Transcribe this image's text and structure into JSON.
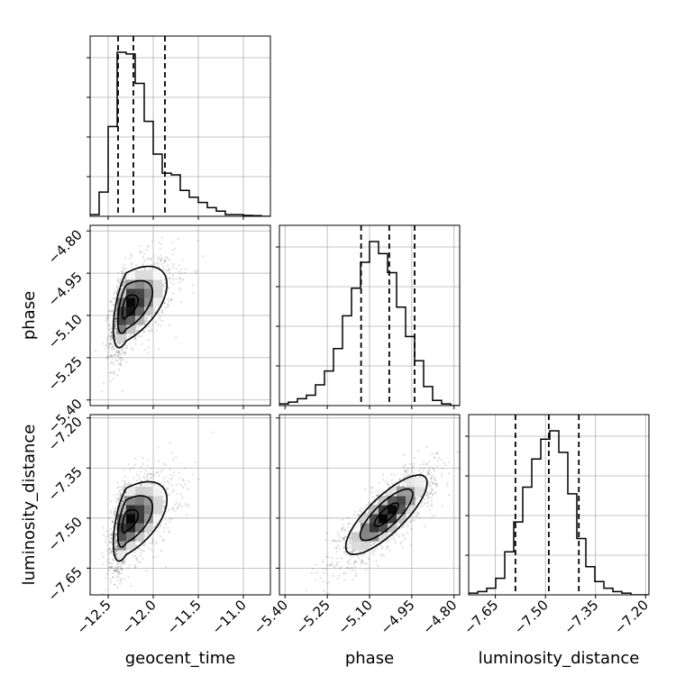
{
  "chart_data": {
    "type": "corner",
    "parameters": [
      "geocent_time",
      "phase",
      "luminosity_distance"
    ],
    "axis_labels": {
      "geocent_time": "geocent_time",
      "phase": "phase",
      "luminosity_distance": "luminosity_distance"
    },
    "ranges": {
      "geocent_time": [
        -12.7,
        -10.7
      ],
      "phase": [
        -5.42,
        -4.78
      ],
      "luminosity_distance": [
        -7.73,
        -7.19
      ]
    },
    "ticks": {
      "geocent_time": {
        "values": [
          -12.5,
          -12.0,
          -11.5,
          -11.0
        ],
        "labels": [
          "−12.5",
          "−12.0",
          "−11.5",
          "−11.0"
        ]
      },
      "phase": {
        "values": [
          -5.4,
          -5.25,
          -5.1,
          -4.95,
          -4.8
        ],
        "labels": [
          "−5.40",
          "−5.25",
          "−5.10",
          "−4.95",
          "−4.80"
        ]
      },
      "luminosity_distance": {
        "values": [
          -7.65,
          -7.5,
          -7.35,
          -7.2
        ],
        "labels": [
          "−7.65",
          "−7.50",
          "−7.35",
          "−7.20"
        ]
      }
    },
    "quantiles": {
      "geocent_time": [
        -12.39,
        -12.22,
        -11.87
      ],
      "phase": [
        -5.13,
        -5.03,
        -4.94
      ],
      "luminosity_distance": [
        -7.59,
        -7.49,
        -7.4
      ]
    },
    "histograms": {
      "geocent_time": {
        "bin_start": -12.7,
        "bin_width": 0.1,
        "counts": [
          1,
          14,
          52,
          95,
          94,
          77,
          55,
          36,
          25,
          24,
          15,
          11,
          8,
          5,
          3,
          1,
          1,
          0.5,
          0.4,
          0
        ]
      },
      "phase": {
        "bin_start": -5.42,
        "bin_width": 0.032,
        "counts": [
          1,
          2,
          4,
          6,
          12,
          20,
          33,
          52,
          68,
          83,
          95,
          88,
          77,
          57,
          40,
          26,
          11,
          3,
          1,
          0
        ]
      },
      "luminosity_distance": {
        "bin_start": -7.73,
        "bin_width": 0.027,
        "counts": [
          1,
          2,
          4,
          10,
          26,
          44,
          65,
          82,
          94,
          99,
          86,
          61,
          34,
          17,
          8,
          4,
          2,
          1,
          0,
          0
        ]
      }
    },
    "correlations": {
      "phase|geocent_time": {
        "center": [
          -12.3,
          -5.07
        ],
        "spread": [
          0.14,
          0.085
        ],
        "rho": 0.55
      },
      "luminosity_distance|geocent_time": {
        "center": [
          -12.3,
          -7.51
        ],
        "spread": [
          0.14,
          0.07
        ],
        "rho": 0.55
      },
      "luminosity_distance|phase": {
        "center": [
          -5.04,
          -7.49
        ],
        "spread": [
          0.085,
          0.07
        ],
        "rho": 0.8
      }
    },
    "grid": true,
    "colors": {
      "line": "#000000",
      "grid": "#b0b0b0",
      "points": "#000000"
    }
  }
}
